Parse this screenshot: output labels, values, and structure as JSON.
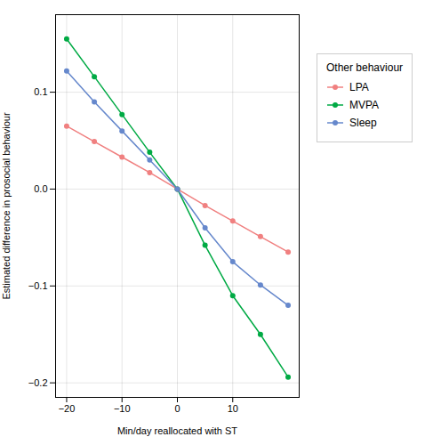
{
  "chart_data": {
    "type": "line",
    "xlabel": "Min/day reallocated with ST",
    "ylabel": "Estimated difference in prosocial behaviour",
    "legend_title": "Other behaviour",
    "legend": "right",
    "grid": true,
    "marker": "circle",
    "xlim": [
      -22,
      22
    ],
    "ylim": [
      -0.215,
      0.18
    ],
    "xticks": [
      -20,
      -10,
      0,
      10
    ],
    "yticks": [
      -0.2,
      -0.1,
      {
        "value": 0.0,
        "label": "0.0"
      },
      0.1
    ],
    "x": [
      -20,
      -15,
      -10,
      -5,
      0,
      5,
      10,
      15,
      20
    ],
    "series": [
      {
        "name": "LPA",
        "color": "#f08080",
        "values": [
          0.065,
          0.049,
          0.033,
          0.017,
          0.0,
          -0.017,
          -0.033,
          -0.049,
          -0.065
        ]
      },
      {
        "name": "MVPA",
        "color": "#00aa44",
        "values": [
          0.155,
          0.116,
          0.077,
          0.038,
          0.0,
          -0.058,
          -0.11,
          -0.15,
          -0.194
        ]
      },
      {
        "name": "Sleep",
        "color": "#6688cc",
        "values": [
          0.122,
          0.09,
          0.06,
          0.03,
          0.0,
          -0.04,
          -0.075,
          -0.099,
          -0.12
        ]
      }
    ]
  }
}
